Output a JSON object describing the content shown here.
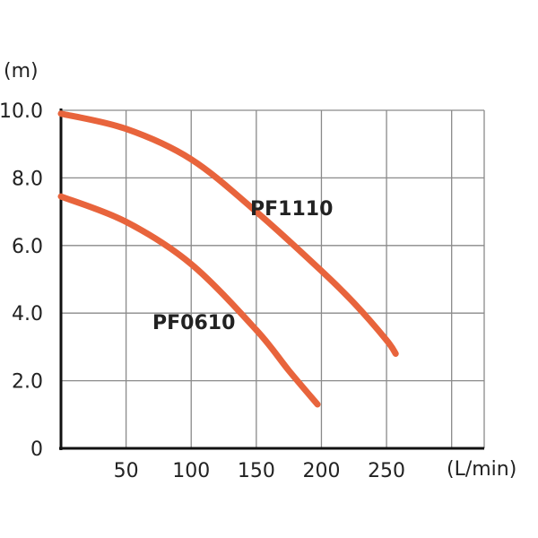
{
  "chart_data": {
    "type": "line",
    "xlabel": "(L/min)",
    "ylabel": "(m)",
    "xlim": [
      0,
      325
    ],
    "ylim": [
      0,
      10
    ],
    "x_ticks": [
      50,
      100,
      150,
      200,
      250,
      300
    ],
    "x_tick_labels": [
      "50",
      "100",
      "150",
      "200",
      "250",
      ""
    ],
    "y_ticks": [
      0,
      2,
      4,
      6,
      8,
      10
    ],
    "y_tick_labels": [
      "0",
      "2.0",
      "4.0",
      "6.0",
      "8.0",
      "10.0"
    ],
    "grid": true,
    "series": [
      {
        "name": "PF1110",
        "color": "#e8643c",
        "x": [
          0,
          50,
          100,
          150,
          200,
          225,
          250,
          257
        ],
        "y": [
          9.9,
          9.45,
          8.55,
          7.0,
          5.25,
          4.3,
          3.2,
          2.8
        ]
      },
      {
        "name": "PF0610",
        "color": "#e8643c",
        "x": [
          0,
          50,
          100,
          150,
          175,
          197
        ],
        "y": [
          7.45,
          6.7,
          5.45,
          3.5,
          2.3,
          1.3
        ]
      }
    ]
  }
}
